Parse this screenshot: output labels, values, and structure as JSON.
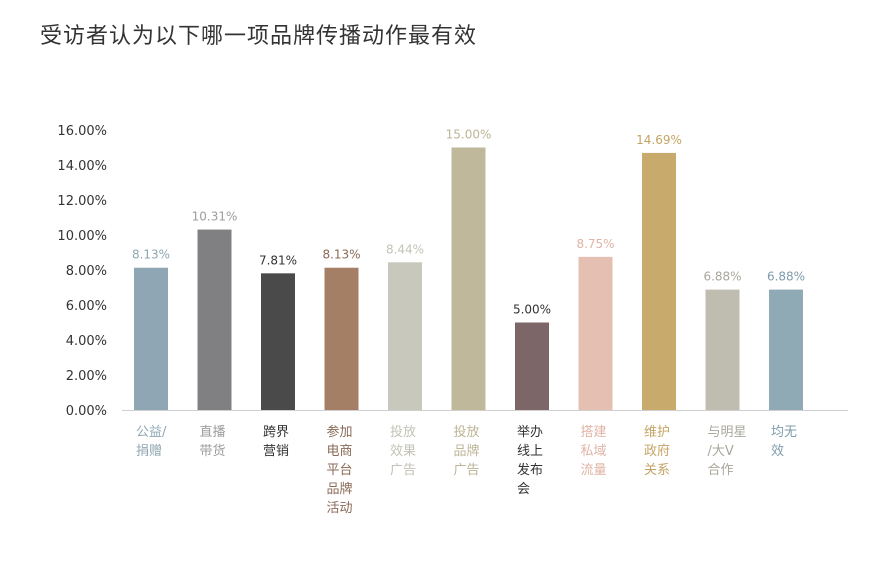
{
  "chart_data": {
    "type": "bar",
    "title": "受访者认为以下哪一项品牌传播动作最有效",
    "xlabel": "",
    "ylabel": "",
    "ylim": [
      0,
      16
    ],
    "y_ticks": [
      "0.00%",
      "2.00%",
      "4.00%",
      "6.00%",
      "8.00%",
      "10.00%",
      "12.00%",
      "14.00%",
      "16.00%"
    ],
    "grid": false,
    "categories": [
      [
        "公益/",
        "捐赠"
      ],
      [
        "直播",
        "带货"
      ],
      [
        "跨界",
        "营销"
      ],
      [
        "参加",
        "电商",
        "平台",
        "品牌",
        "活动"
      ],
      [
        "投放",
        "效果",
        "广告"
      ],
      [
        "投放",
        "品牌",
        "广告"
      ],
      [
        "举办",
        "线上",
        "发布",
        "会"
      ],
      [
        "搭建",
        "私域",
        "流量"
      ],
      [
        "维护",
        "政府",
        "关系"
      ],
      [
        "与明星",
        "/大V",
        "合作"
      ],
      [
        "均无",
        "效"
      ]
    ],
    "values": [
      8.13,
      10.31,
      7.81,
      8.13,
      8.44,
      15.0,
      5.0,
      8.75,
      14.69,
      6.88,
      6.88
    ],
    "value_labels": [
      "8.13%",
      "10.31%",
      "7.81%",
      "8.13%",
      "8.44%",
      "15.00%",
      "5.00%",
      "8.75%",
      "14.69%",
      "6.88%",
      "6.88%"
    ],
    "bar_colors": [
      "#8fa7b4",
      "#807f81",
      "#4a4a4a",
      "#a47f66",
      "#c9c8bc",
      "#c0b89a",
      "#7c6667",
      "#e5bfb2",
      "#c8aa6d",
      "#bfbdb0",
      "#8fa9b5"
    ],
    "label_colors": [
      "#8fa7b4",
      "#9d9c9e",
      "#333333",
      "#8a6a57",
      "#c3c2b6",
      "#bdb497",
      "#333333",
      "#e0b4a6",
      "#c4a465",
      "#a9a79c",
      "#7f9cab"
    ]
  }
}
